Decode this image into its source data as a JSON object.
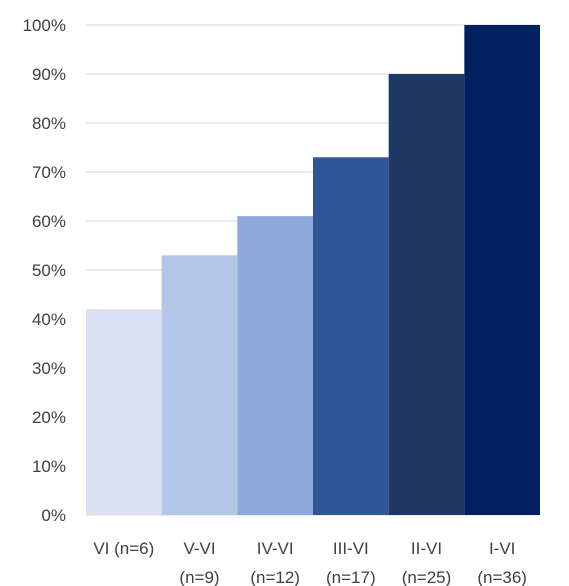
{
  "chart_data": {
    "type": "bar",
    "categories": [
      [
        "VI (n=6)",
        ""
      ],
      [
        "V-VI",
        "(n=9)"
      ],
      [
        "IV-VI",
        "(n=12)"
      ],
      [
        "III-VI",
        "(n=17)"
      ],
      [
        "II-VI",
        "(n=25)"
      ],
      [
        "I-VI",
        "(n=36)"
      ]
    ],
    "values": [
      42,
      53,
      61,
      73,
      90,
      100
    ],
    "colors": [
      "#d9e1f2",
      "#b4c6e7",
      "#8eaadb",
      "#2f5597",
      "#203864",
      "#002060"
    ],
    "y_ticks": [
      "0%",
      "10%",
      "20%",
      "30%",
      "40%",
      "50%",
      "60%",
      "70%",
      "80%",
      "90%",
      "100%"
    ],
    "ylim": [
      0,
      100
    ],
    "grid": true,
    "title": "",
    "xlabel": "",
    "ylabel": ""
  }
}
